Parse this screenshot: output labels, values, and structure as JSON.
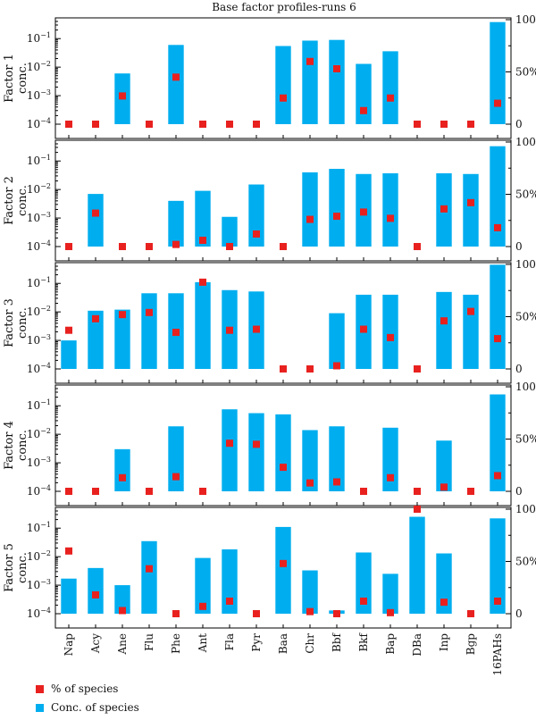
{
  "chart_data": {
    "type": "bar",
    "title": "Base factor profiles-runs 6",
    "categories": [
      "Nap",
      "Acy",
      "Ane",
      "Flu",
      "Phe",
      "Ant",
      "Fla",
      "Pyr",
      "Baa",
      "Chr",
      "Bbf",
      "Bkf",
      "Bap",
      "DBa",
      "Inp",
      "Bgp",
      "16PAHs"
    ],
    "left_axis": {
      "scale": "log",
      "ylim": [
        0.0001,
        0.4
      ],
      "ticks": [
        "10^-4",
        "10^-3",
        "10^-2",
        "10^-1"
      ]
    },
    "right_axis": {
      "scale": "linear",
      "ylim": [
        0,
        100
      ],
      "ticks": [
        "0",
        "50%",
        "100"
      ]
    },
    "series_names": {
      "bar": "Conc. of species",
      "marker": "% of species"
    },
    "colors": {
      "bar": "#00AEEF",
      "marker": "#E8211F"
    },
    "panels": [
      {
        "ylabel": "Factor 1\nconc.",
        "bar": [
          null,
          null,
          0.006,
          null,
          0.06,
          null,
          null,
          null,
          0.055,
          0.085,
          0.09,
          0.013,
          0.036,
          null,
          null,
          null,
          0.38
        ],
        "marker": [
          0,
          0,
          27,
          0,
          45,
          0,
          0,
          0,
          25,
          60,
          53,
          13,
          25,
          0,
          0,
          0,
          20
        ]
      },
      {
        "ylabel": "Factor 2\nconc.",
        "bar": [
          null,
          0.007,
          null,
          null,
          0.004,
          0.009,
          0.0011,
          0.015,
          null,
          0.04,
          0.053,
          0.035,
          0.037,
          null,
          0.037,
          0.035,
          0.33
        ],
        "marker": [
          0,
          32,
          0,
          0,
          2,
          6,
          0,
          12,
          0,
          26,
          29,
          33,
          27,
          0,
          36,
          42,
          18
        ]
      },
      {
        "ylabel": "Factor 3\nconc.",
        "bar": [
          0.001,
          0.011,
          0.012,
          0.045,
          0.045,
          0.11,
          0.058,
          0.052,
          null,
          null,
          0.009,
          0.04,
          0.04,
          null,
          0.05,
          0.04,
          0.45
        ],
        "marker": [
          37,
          48,
          52,
          54,
          35,
          83,
          37,
          38,
          0,
          0,
          3,
          38,
          30,
          0,
          46,
          55,
          29
        ]
      },
      {
        "ylabel": "Factor 4\nconc.",
        "bar": [
          null,
          null,
          0.003,
          null,
          0.019,
          null,
          0.075,
          0.055,
          0.05,
          0.014,
          0.019,
          null,
          0.017,
          null,
          0.006,
          null,
          0.25
        ],
        "marker": [
          0,
          0,
          13,
          0,
          14,
          0,
          46,
          45,
          23,
          8,
          9,
          0,
          13,
          0,
          4,
          0,
          15
        ]
      },
      {
        "ylabel": "Factor 5\nconc.",
        "bar": [
          0.0017,
          0.004,
          0.001,
          0.035,
          null,
          0.009,
          0.018,
          null,
          0.11,
          0.0033,
          0.00013,
          0.014,
          0.0025,
          0.25,
          0.013,
          null,
          0.22
        ],
        "marker": [
          60,
          18,
          3,
          43,
          0,
          7,
          12,
          0,
          48,
          2,
          0,
          12,
          1,
          100,
          11,
          0,
          12
        ]
      }
    ]
  }
}
